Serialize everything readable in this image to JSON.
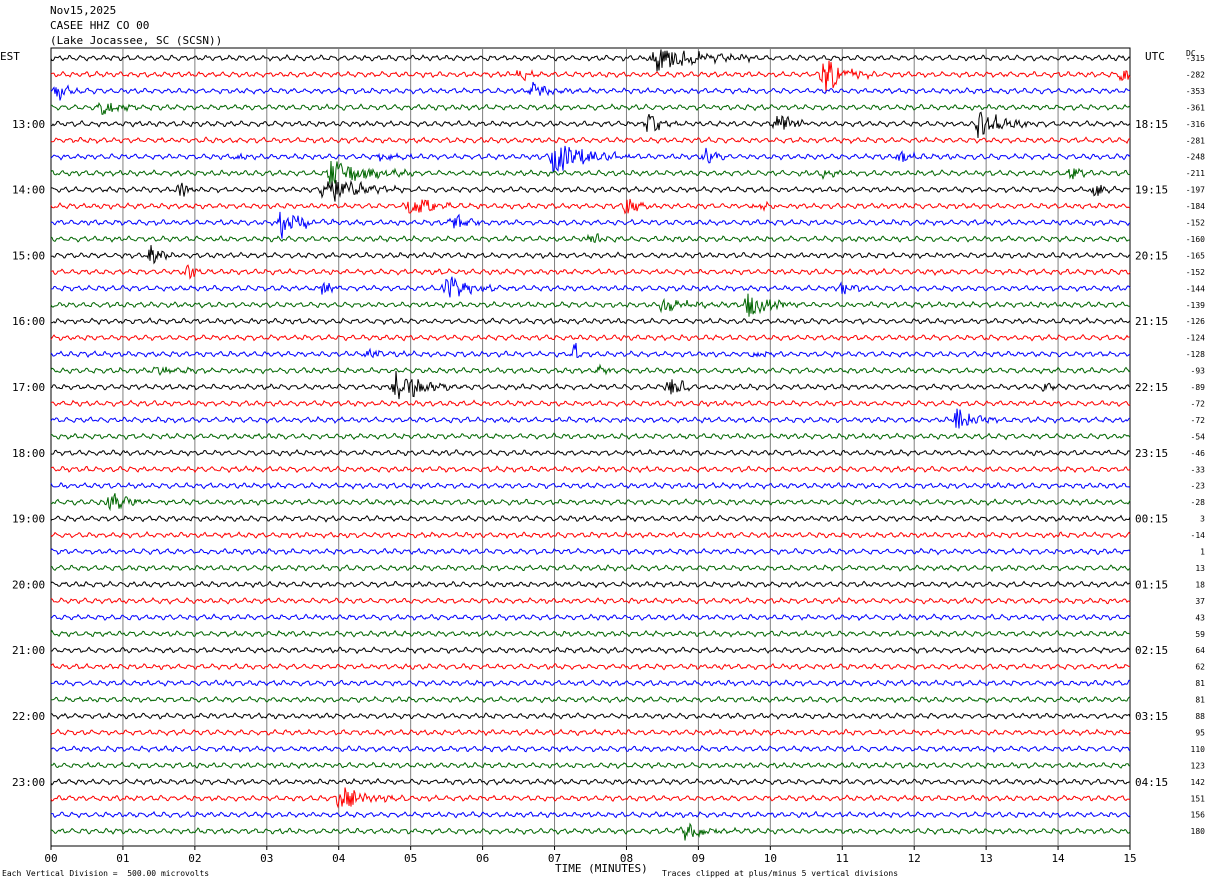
{
  "header": {
    "date": "Nov15,2025",
    "station": "CASEE HHZ CO 00",
    "location": "(Lake Jocassee, SC (SCSN))"
  },
  "left_axis_label": "EST",
  "right_axis_label": "UTC",
  "dc_label": "DC",
  "footer": {
    "vertical_division": "Each Vertical Division =  500.00 microvolts",
    "clip_note": "Traces clipped at plus/minus 5 vertical divisions"
  },
  "colors": {
    "trace_cycle": [
      "#000000",
      "#ff0000",
      "#0000ff",
      "#006600"
    ],
    "grid": "#808080"
  },
  "chart_data": {
    "type": "line",
    "xlabel": "TIME (MINUTES)",
    "x_ticks": [
      "00",
      "01",
      "02",
      "03",
      "04",
      "05",
      "06",
      "07",
      "08",
      "09",
      "10",
      "11",
      "12",
      "13",
      "14",
      "15"
    ],
    "xlim": [
      0,
      15
    ],
    "left_hour_labels": [
      "13:00",
      "14:00",
      "15:00",
      "16:00",
      "17:00",
      "18:00",
      "19:00",
      "20:00",
      "21:00",
      "22:00",
      "23:00"
    ],
    "right_hour_labels": [
      "18:15",
      "19:15",
      "20:15",
      "21:15",
      "22:15",
      "23:15",
      "00:15",
      "01:15",
      "02:15",
      "03:15",
      "04:15"
    ],
    "dc_offsets": [
      -315,
      -282,
      -353,
      -361,
      -316,
      -281,
      -248,
      -211,
      -197,
      -184,
      -152,
      -160,
      -165,
      -152,
      -144,
      -139,
      -126,
      -124,
      -128,
      -93,
      -89,
      -72,
      -72,
      -54,
      -46,
      -33,
      -23,
      -28,
      3,
      -14,
      1,
      13,
      18,
      37,
      43,
      59,
      64,
      62,
      81,
      81,
      88,
      95,
      110,
      123,
      142,
      151,
      156,
      180
    ],
    "events": [
      {
        "trace": 0,
        "minute": 8.4,
        "amp": 14,
        "dur": 1.6
      },
      {
        "trace": 1,
        "minute": 6.5,
        "amp": 6,
        "dur": 0.5
      },
      {
        "trace": 1,
        "minute": 10.75,
        "amp": 22,
        "dur": 0.7
      },
      {
        "trace": 1,
        "minute": 14.9,
        "amp": 8,
        "dur": 0.4
      },
      {
        "trace": 2,
        "minute": 0.1,
        "amp": 9,
        "dur": 0.6
      },
      {
        "trace": 2,
        "minute": 6.7,
        "amp": 8,
        "dur": 0.7
      },
      {
        "trace": 3,
        "minute": 0.7,
        "amp": 8,
        "dur": 0.8
      },
      {
        "trace": 4,
        "minute": 8.3,
        "amp": 11,
        "dur": 0.5
      },
      {
        "trace": 4,
        "minute": 10.1,
        "amp": 12,
        "dur": 0.6
      },
      {
        "trace": 4,
        "minute": 12.9,
        "amp": 14,
        "dur": 1.0
      },
      {
        "trace": 6,
        "minute": 2.6,
        "amp": 5,
        "dur": 0.3
      },
      {
        "trace": 6,
        "minute": 4.6,
        "amp": 6,
        "dur": 0.6
      },
      {
        "trace": 6,
        "minute": 7.0,
        "amp": 18,
        "dur": 1.2
      },
      {
        "trace": 6,
        "minute": 9.1,
        "amp": 7,
        "dur": 0.5
      },
      {
        "trace": 6,
        "minute": 11.8,
        "amp": 7,
        "dur": 0.5
      },
      {
        "trace": 7,
        "minute": 3.9,
        "amp": 16,
        "dur": 1.2
      },
      {
        "trace": 7,
        "minute": 10.7,
        "amp": 6,
        "dur": 0.5
      },
      {
        "trace": 7,
        "minute": 14.2,
        "amp": 9,
        "dur": 0.3
      },
      {
        "trace": 8,
        "minute": 1.8,
        "amp": 8,
        "dur": 0.4
      },
      {
        "trace": 8,
        "minute": 3.8,
        "amp": 16,
        "dur": 1.2
      },
      {
        "trace": 8,
        "minute": 14.5,
        "amp": 8,
        "dur": 0.4
      },
      {
        "trace": 9,
        "minute": 5.0,
        "amp": 10,
        "dur": 1.0
      },
      {
        "trace": 9,
        "minute": 8.0,
        "amp": 10,
        "dur": 0.4
      },
      {
        "trace": 9,
        "minute": 9.8,
        "amp": 6,
        "dur": 0.6
      },
      {
        "trace": 10,
        "minute": 3.2,
        "amp": 15,
        "dur": 0.9
      },
      {
        "trace": 10,
        "minute": 5.6,
        "amp": 10,
        "dur": 0.5
      },
      {
        "trace": 11,
        "minute": 7.5,
        "amp": 7,
        "dur": 0.4
      },
      {
        "trace": 12,
        "minute": 1.4,
        "amp": 12,
        "dur": 0.4
      },
      {
        "trace": 13,
        "minute": 1.9,
        "amp": 7,
        "dur": 0.5
      },
      {
        "trace": 14,
        "minute": 3.8,
        "amp": 8,
        "dur": 0.4
      },
      {
        "trace": 14,
        "minute": 5.5,
        "amp": 14,
        "dur": 0.9
      },
      {
        "trace": 14,
        "minute": 11.0,
        "amp": 8,
        "dur": 0.4
      },
      {
        "trace": 15,
        "minute": 8.5,
        "amp": 7,
        "dur": 1.0
      },
      {
        "trace": 15,
        "minute": 9.7,
        "amp": 14,
        "dur": 0.8
      },
      {
        "trace": 18,
        "minute": 4.4,
        "amp": 6,
        "dur": 0.6
      },
      {
        "trace": 18,
        "minute": 7.3,
        "amp": 14,
        "dur": 0.06
      },
      {
        "trace": 18,
        "minute": 9.8,
        "amp": 5,
        "dur": 0.3
      },
      {
        "trace": 19,
        "minute": 1.5,
        "amp": 5,
        "dur": 0.6
      },
      {
        "trace": 19,
        "minute": 7.6,
        "amp": 5,
        "dur": 0.5
      },
      {
        "trace": 20,
        "minute": 4.8,
        "amp": 16,
        "dur": 1.0
      },
      {
        "trace": 20,
        "minute": 8.6,
        "amp": 11,
        "dur": 0.5
      },
      {
        "trace": 20,
        "minute": 13.8,
        "amp": 4,
        "dur": 0.4
      },
      {
        "trace": 22,
        "minute": 12.6,
        "amp": 13,
        "dur": 0.6
      },
      {
        "trace": 27,
        "minute": 0.8,
        "amp": 10,
        "dur": 0.8
      },
      {
        "trace": 45,
        "minute": 4.0,
        "amp": 11,
        "dur": 1.1
      },
      {
        "trace": 47,
        "minute": 8.8,
        "amp": 11,
        "dur": 0.9
      }
    ]
  }
}
